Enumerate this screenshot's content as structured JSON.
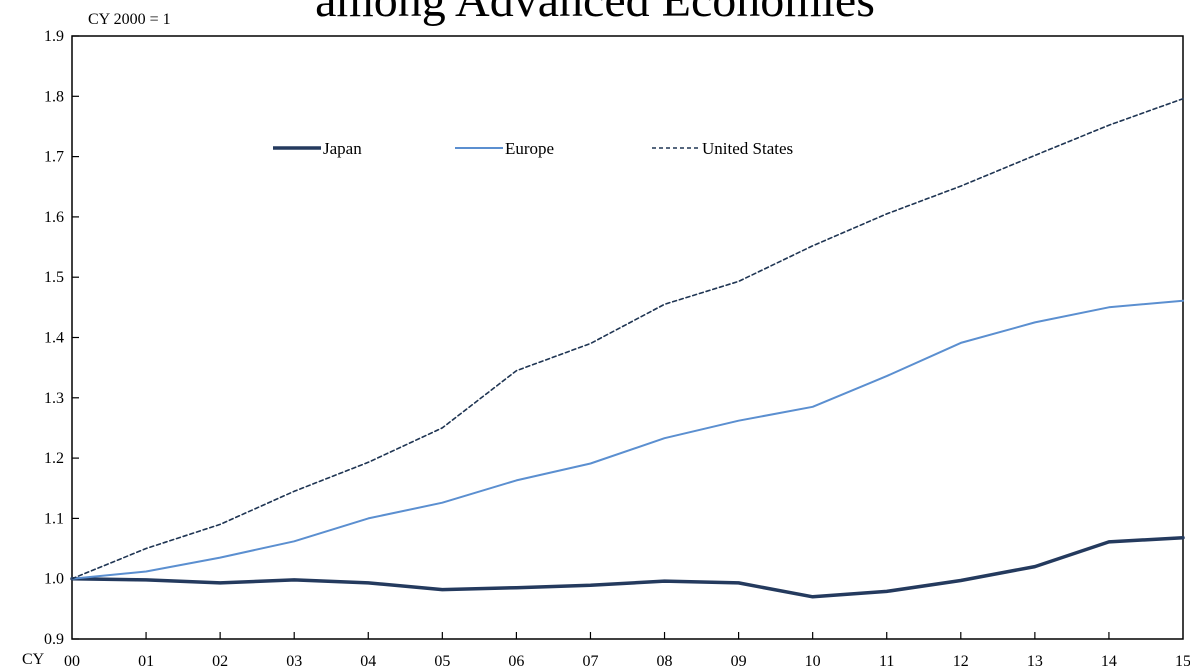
{
  "chart_data": {
    "type": "line",
    "title": "among Advanced Economies",
    "unit_label": "CY 2000 = 1",
    "x_axis_prefix": "CY",
    "categories": [
      "00",
      "01",
      "02",
      "03",
      "04",
      "05",
      "06",
      "07",
      "08",
      "09",
      "10",
      "11",
      "12",
      "13",
      "14",
      "15"
    ],
    "ylim": [
      0.9,
      1.9
    ],
    "yticks": [
      0.9,
      1.0,
      1.1,
      1.2,
      1.3,
      1.4,
      1.5,
      1.6,
      1.7,
      1.8,
      1.9
    ],
    "ytick_labels": [
      "0.9",
      "1.0",
      "1.1",
      "1.2",
      "1.3",
      "1.4",
      "1.5",
      "1.6",
      "1.7",
      "1.8",
      "1.9"
    ],
    "grid": false,
    "legend_position": "top-center",
    "series": [
      {
        "name": "Japan",
        "style": "solid-thick",
        "color": "#243a5e",
        "values": [
          1.0,
          0.998,
          0.993,
          0.998,
          0.993,
          0.982,
          0.985,
          0.989,
          0.996,
          0.993,
          0.97,
          0.979,
          0.997,
          1.02,
          1.061,
          1.068
        ]
      },
      {
        "name": "Europe",
        "style": "solid-thin",
        "color": "#5b8fd0",
        "values": [
          1.0,
          1.012,
          1.035,
          1.062,
          1.1,
          1.126,
          1.163,
          1.191,
          1.233,
          1.262,
          1.285,
          1.336,
          1.391,
          1.425,
          1.45,
          1.461
        ]
      },
      {
        "name": "United States",
        "style": "dashed",
        "color": "#1f3553",
        "values": [
          1.0,
          1.05,
          1.09,
          1.145,
          1.193,
          1.25,
          1.345,
          1.39,
          1.455,
          1.493,
          1.552,
          1.605,
          1.651,
          1.702,
          1.752,
          1.796
        ]
      }
    ]
  }
}
